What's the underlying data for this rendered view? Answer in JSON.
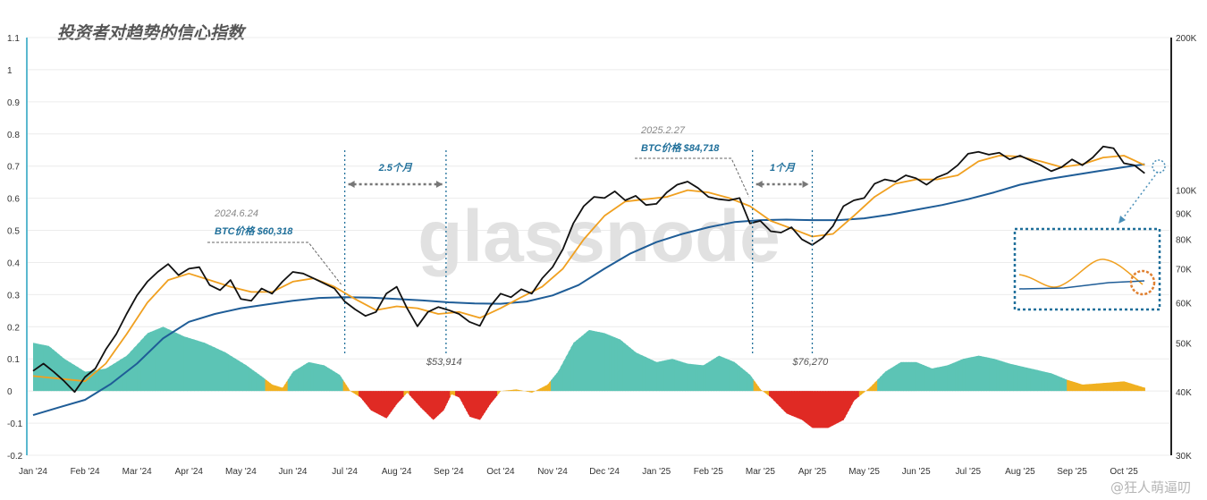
{
  "title": "投资者对趋势的信心指数",
  "watermark": "@狂人萌逼叨",
  "brand": "glassnode",
  "chart_data": {
    "type": "line",
    "title": "投资者对趋势的信心指数",
    "y_left": {
      "min": -0.2,
      "max": 1.1,
      "ticks": [
        -0.2,
        -0.1,
        0,
        0.1,
        0.2,
        0.3,
        0.4,
        0.5,
        0.6,
        0.7,
        0.8,
        0.9,
        1,
        1.1
      ],
      "tick_labels": [
        "-0.2",
        "-0.1",
        "0",
        "0.1",
        "0.2",
        "0.3",
        "0.4",
        "0.5",
        "0.6",
        "0.7",
        "0.8",
        "0.9",
        "1",
        "1.1"
      ]
    },
    "y_right": {
      "scale": "log",
      "min": 30000,
      "max": 200000,
      "ticks": [
        30000,
        40000,
        50000,
        60000,
        70000,
        80000,
        90000,
        100000,
        200000
      ],
      "tick_labels": [
        "30K",
        "40K",
        "50K",
        "60K",
        "70K",
        "80K",
        "90K",
        "100K",
        "200K"
      ]
    },
    "x_range": [
      0,
      21.6
    ],
    "x_ticks": [
      0,
      1,
      2,
      3,
      4,
      5,
      6,
      7,
      8,
      9,
      10,
      11,
      12,
      13,
      14,
      15,
      16,
      17,
      18,
      19,
      20,
      21
    ],
    "x_tick_labels": [
      "Jan '24",
      "Feb '24",
      "Mar '24",
      "Apr '24",
      "May '24",
      "Jun '24",
      "Jul '24",
      "Aug '24",
      "Sep '24",
      "Oct '24",
      "Nov '24",
      "Dec '24",
      "Jan '25",
      "Feb '25",
      "Mar '25",
      "Apr '25",
      "May '25",
      "Jun '25",
      "Jul '25",
      "Aug '25",
      "Sep '25",
      "Oct '25"
    ],
    "series": [
      {
        "role": "btc_price",
        "color": "#111111",
        "axis": "right",
        "points": [
          [
            0,
            44000
          ],
          [
            0.2,
            45500
          ],
          [
            0.4,
            43800
          ],
          [
            0.6,
            42000
          ],
          [
            0.8,
            40000
          ],
          [
            1,
            42800
          ],
          [
            1.2,
            44500
          ],
          [
            1.4,
            48500
          ],
          [
            1.6,
            52000
          ],
          [
            1.8,
            57000
          ],
          [
            2,
            62000
          ],
          [
            2.2,
            66000
          ],
          [
            2.4,
            69000
          ],
          [
            2.6,
            71500
          ],
          [
            2.8,
            68000
          ],
          [
            3,
            70000
          ],
          [
            3.2,
            70500
          ],
          [
            3.4,
            65000
          ],
          [
            3.6,
            63500
          ],
          [
            3.8,
            66500
          ],
          [
            4,
            61000
          ],
          [
            4.2,
            60500
          ],
          [
            4.4,
            64000
          ],
          [
            4.6,
            62500
          ],
          [
            4.8,
            66000
          ],
          [
            5,
            69000
          ],
          [
            5.2,
            68500
          ],
          [
            5.4,
            67000
          ],
          [
            5.6,
            65500
          ],
          [
            5.8,
            64000
          ],
          [
            6,
            60300
          ],
          [
            6.2,
            58200
          ],
          [
            6.4,
            56500
          ],
          [
            6.6,
            57500
          ],
          [
            6.8,
            62500
          ],
          [
            7,
            64500
          ],
          [
            7.2,
            58500
          ],
          [
            7.4,
            53900
          ],
          [
            7.6,
            57500
          ],
          [
            7.8,
            58800
          ],
          [
            8,
            58000
          ],
          [
            8.2,
            57000
          ],
          [
            8.4,
            55000
          ],
          [
            8.6,
            54000
          ],
          [
            8.8,
            59000
          ],
          [
            9,
            62500
          ],
          [
            9.2,
            61500
          ],
          [
            9.4,
            63800
          ],
          [
            9.6,
            62500
          ],
          [
            9.8,
            67000
          ],
          [
            10,
            70500
          ],
          [
            10.2,
            76500
          ],
          [
            10.4,
            86000
          ],
          [
            10.6,
            93000
          ],
          [
            10.8,
            97000
          ],
          [
            11,
            96500
          ],
          [
            11.2,
            99500
          ],
          [
            11.4,
            95500
          ],
          [
            11.6,
            97500
          ],
          [
            11.8,
            93500
          ],
          [
            12,
            94000
          ],
          [
            12.2,
            99000
          ],
          [
            12.4,
            102500
          ],
          [
            12.6,
            104000
          ],
          [
            12.8,
            101000
          ],
          [
            13,
            97000
          ],
          [
            13.2,
            96000
          ],
          [
            13.4,
            95500
          ],
          [
            13.6,
            96500
          ],
          [
            13.8,
            86000
          ],
          [
            14,
            87000
          ],
          [
            14.2,
            83000
          ],
          [
            14.4,
            82500
          ],
          [
            14.6,
            84500
          ],
          [
            14.8,
            80000
          ],
          [
            15,
            78000
          ],
          [
            15.2,
            80500
          ],
          [
            15.4,
            85000
          ],
          [
            15.6,
            93000
          ],
          [
            15.8,
            95500
          ],
          [
            16,
            96500
          ],
          [
            16.2,
            103000
          ],
          [
            16.4,
            105000
          ],
          [
            16.6,
            104000
          ],
          [
            16.8,
            107000
          ],
          [
            17,
            105500
          ],
          [
            17.2,
            102500
          ],
          [
            17.4,
            106000
          ],
          [
            17.6,
            108000
          ],
          [
            17.8,
            112000
          ],
          [
            18,
            118000
          ],
          [
            18.2,
            119000
          ],
          [
            18.4,
            117500
          ],
          [
            18.6,
            118500
          ],
          [
            18.8,
            115000
          ],
          [
            19,
            117000
          ],
          [
            19.2,
            114500
          ],
          [
            19.4,
            112000
          ],
          [
            19.6,
            109000
          ],
          [
            19.8,
            111000
          ],
          [
            20,
            115000
          ],
          [
            20.2,
            112000
          ],
          [
            20.4,
            116000
          ],
          [
            20.6,
            122000
          ],
          [
            20.8,
            121000
          ],
          [
            21,
            113000
          ],
          [
            21.2,
            112000
          ],
          [
            21.4,
            108000
          ]
        ]
      },
      {
        "role": "btc_short_ma",
        "color": "#f0a020",
        "axis": "right",
        "points": [
          [
            0,
            43000
          ],
          [
            0.5,
            42500
          ],
          [
            1,
            42000
          ],
          [
            1.4,
            45500
          ],
          [
            1.8,
            52000
          ],
          [
            2.2,
            60000
          ],
          [
            2.6,
            66500
          ],
          [
            3,
            68500
          ],
          [
            3.4,
            66500
          ],
          [
            3.8,
            64500
          ],
          [
            4.2,
            63000
          ],
          [
            4.6,
            63000
          ],
          [
            5,
            66000
          ],
          [
            5.4,
            67000
          ],
          [
            5.8,
            64500
          ],
          [
            6.2,
            61000
          ],
          [
            6.6,
            58000
          ],
          [
            7,
            59000
          ],
          [
            7.4,
            58500
          ],
          [
            7.8,
            57000
          ],
          [
            8.2,
            57500
          ],
          [
            8.6,
            56000
          ],
          [
            9,
            58500
          ],
          [
            9.4,
            61500
          ],
          [
            9.8,
            64500
          ],
          [
            10.2,
            70000
          ],
          [
            10.6,
            80000
          ],
          [
            11,
            89000
          ],
          [
            11.4,
            95000
          ],
          [
            11.8,
            96000
          ],
          [
            12.2,
            97000
          ],
          [
            12.6,
            100000
          ],
          [
            13,
            99000
          ],
          [
            13.4,
            96500
          ],
          [
            13.8,
            93000
          ],
          [
            14.2,
            87000
          ],
          [
            14.6,
            84000
          ],
          [
            15,
            81000
          ],
          [
            15.4,
            82000
          ],
          [
            15.8,
            89000
          ],
          [
            16.2,
            97000
          ],
          [
            16.6,
            103000
          ],
          [
            17,
            105000
          ],
          [
            17.4,
            105000
          ],
          [
            17.8,
            107000
          ],
          [
            18.2,
            114000
          ],
          [
            18.6,
            117000
          ],
          [
            19,
            116500
          ],
          [
            19.4,
            114000
          ],
          [
            19.8,
            111000
          ],
          [
            20.2,
            112500
          ],
          [
            20.6,
            116000
          ],
          [
            21,
            117000
          ],
          [
            21.4,
            112000
          ]
        ]
      },
      {
        "role": "btc_long_ma",
        "color": "#1f5d97",
        "axis": "right",
        "points": [
          [
            0,
            36000
          ],
          [
            0.5,
            37300
          ],
          [
            1,
            38600
          ],
          [
            1.5,
            41500
          ],
          [
            2,
            45500
          ],
          [
            2.5,
            51000
          ],
          [
            3,
            55000
          ],
          [
            3.5,
            57000
          ],
          [
            4,
            58500
          ],
          [
            4.5,
            59500
          ],
          [
            5,
            60500
          ],
          [
            5.5,
            61300
          ],
          [
            6,
            61500
          ],
          [
            6.5,
            61400
          ],
          [
            7,
            61000
          ],
          [
            7.5,
            60600
          ],
          [
            8,
            60100
          ],
          [
            8.5,
            59800
          ],
          [
            9,
            59700
          ],
          [
            9.5,
            60300
          ],
          [
            10,
            62000
          ],
          [
            10.5,
            65000
          ],
          [
            11,
            70000
          ],
          [
            11.5,
            75000
          ],
          [
            12,
            79000
          ],
          [
            12.5,
            82000
          ],
          [
            13,
            84500
          ],
          [
            13.5,
            86500
          ],
          [
            14,
            87300
          ],
          [
            14.5,
            87500
          ],
          [
            15,
            87300
          ],
          [
            15.5,
            87300
          ],
          [
            16,
            88000
          ],
          [
            16.5,
            89500
          ],
          [
            17,
            91500
          ],
          [
            17.5,
            93500
          ],
          [
            18,
            96000
          ],
          [
            18.5,
            99000
          ],
          [
            19,
            102500
          ],
          [
            19.5,
            105000
          ],
          [
            20,
            107000
          ],
          [
            20.5,
            109000
          ],
          [
            21,
            111000
          ],
          [
            21.4,
            112500
          ]
        ]
      },
      {
        "role": "confidence_index",
        "axis": "left",
        "colors": {
          "positive": "#5cc4b5",
          "neutral": "#f0b020",
          "negative": "#e02a24"
        },
        "points": [
          [
            0,
            0.15
          ],
          [
            0.3,
            0.14
          ],
          [
            0.6,
            0.1
          ],
          [
            1,
            0.06
          ],
          [
            1.4,
            0.07
          ],
          [
            1.8,
            0.11
          ],
          [
            2.2,
            0.18
          ],
          [
            2.5,
            0.2
          ],
          [
            2.9,
            0.17
          ],
          [
            3.3,
            0.15
          ],
          [
            3.7,
            0.12
          ],
          [
            4.1,
            0.08
          ],
          [
            4.4,
            0.045
          ],
          [
            4.6,
            0.02
          ],
          [
            4.8,
            0.01
          ],
          [
            5,
            0.06
          ],
          [
            5.3,
            0.09
          ],
          [
            5.6,
            0.08
          ],
          [
            5.9,
            0.05
          ],
          [
            6.1,
            0
          ],
          [
            6.3,
            -0.02
          ],
          [
            6.5,
            -0.06
          ],
          [
            6.8,
            -0.085
          ],
          [
            7,
            -0.04
          ],
          [
            7.2,
            -0.005
          ],
          [
            7.45,
            -0.05
          ],
          [
            7.7,
            -0.09
          ],
          [
            7.9,
            -0.06
          ],
          [
            8.05,
            -0.01
          ],
          [
            8.2,
            -0.02
          ],
          [
            8.4,
            -0.08
          ],
          [
            8.6,
            -0.09
          ],
          [
            8.8,
            -0.04
          ],
          [
            9,
            0
          ],
          [
            9.3,
            0.005
          ],
          [
            9.6,
            -0.005
          ],
          [
            9.9,
            0.02
          ],
          [
            10.1,
            0.06
          ],
          [
            10.4,
            0.15
          ],
          [
            10.7,
            0.19
          ],
          [
            11,
            0.18
          ],
          [
            11.3,
            0.16
          ],
          [
            11.6,
            0.12
          ],
          [
            12,
            0.09
          ],
          [
            12.3,
            0.1
          ],
          [
            12.6,
            0.085
          ],
          [
            12.9,
            0.08
          ],
          [
            13.2,
            0.11
          ],
          [
            13.5,
            0.09
          ],
          [
            13.8,
            0.05
          ],
          [
            14,
            0.005
          ],
          [
            14.2,
            -0.02
          ],
          [
            14.5,
            -0.07
          ],
          [
            14.8,
            -0.09
          ],
          [
            15,
            -0.115
          ],
          [
            15.3,
            -0.115
          ],
          [
            15.6,
            -0.09
          ],
          [
            15.8,
            -0.03
          ],
          [
            16.1,
            0.01
          ],
          [
            16.4,
            0.06
          ],
          [
            16.7,
            0.09
          ],
          [
            17,
            0.09
          ],
          [
            17.3,
            0.07
          ],
          [
            17.6,
            0.08
          ],
          [
            17.9,
            0.1
          ],
          [
            18.2,
            0.11
          ],
          [
            18.5,
            0.1
          ],
          [
            18.8,
            0.085
          ],
          [
            19.2,
            0.07
          ],
          [
            19.6,
            0.055
          ],
          [
            19.9,
            0.035
          ],
          [
            20.2,
            0.02
          ],
          [
            20.6,
            0.025
          ],
          [
            21,
            0.03
          ],
          [
            21.4,
            0.01
          ]
        ]
      }
    ],
    "annotations": [
      {
        "date": "2024.6.24",
        "price_label": "BTC价格 $60,318",
        "x": 6.0
      },
      {
        "date": "2025.2.27",
        "price_label": "BTC价格 $84,718",
        "x": 13.85
      },
      {
        "label": "$53,914",
        "x": 7.95
      },
      {
        "label": "$76,270",
        "x": 15.0
      },
      {
        "span": [
          6.0,
          7.95
        ],
        "label": "2.5个月"
      },
      {
        "span": [
          13.85,
          15.0
        ],
        "label": "1个月"
      }
    ]
  }
}
